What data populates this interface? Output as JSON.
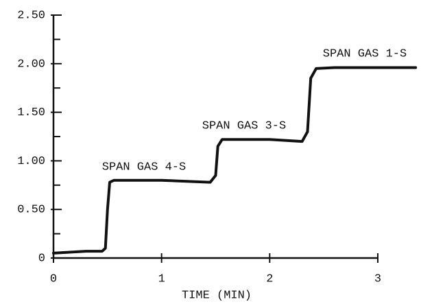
{
  "chart_data": {
    "type": "line",
    "x_label": "TIME (MIN)",
    "xlim": [
      0,
      3
    ],
    "xticks": [
      0,
      1,
      2,
      3
    ],
    "ylim": [
      0,
      2.5
    ],
    "yticks": [
      0,
      {
        "value": 0.5,
        "label": "0.50"
      },
      {
        "value": 1,
        "label": "1.00"
      },
      {
        "value": 1.5,
        "label": "1.50"
      },
      {
        "value": 2,
        "label": "2.00"
      },
      {
        "value": 2.5,
        "label": "2.50"
      }
    ],
    "y_minor_ticks": [
      0.25,
      0.75,
      1.25,
      1.75,
      2.25
    ],
    "annotations": [
      "SPAN GAS 4-S",
      "SPAN GAS 3-S",
      "SPAN GAS 1-S"
    ],
    "series": [
      {
        "color": "#111111",
        "x": [
          0,
          0.3,
          0.45,
          0.48,
          0.5,
          0.52,
          0.56,
          1.0,
          1.45,
          1.5,
          1.52,
          1.56,
          2.0,
          2.3,
          2.35,
          2.38,
          2.43,
          2.6,
          3.0,
          3.35
        ],
        "values": [
          0.05,
          0.07,
          0.07,
          0.1,
          0.5,
          0.78,
          0.8,
          0.8,
          0.78,
          0.85,
          1.15,
          1.22,
          1.22,
          1.2,
          1.3,
          1.85,
          1.95,
          1.96,
          1.96,
          1.96
        ]
      }
    ]
  }
}
